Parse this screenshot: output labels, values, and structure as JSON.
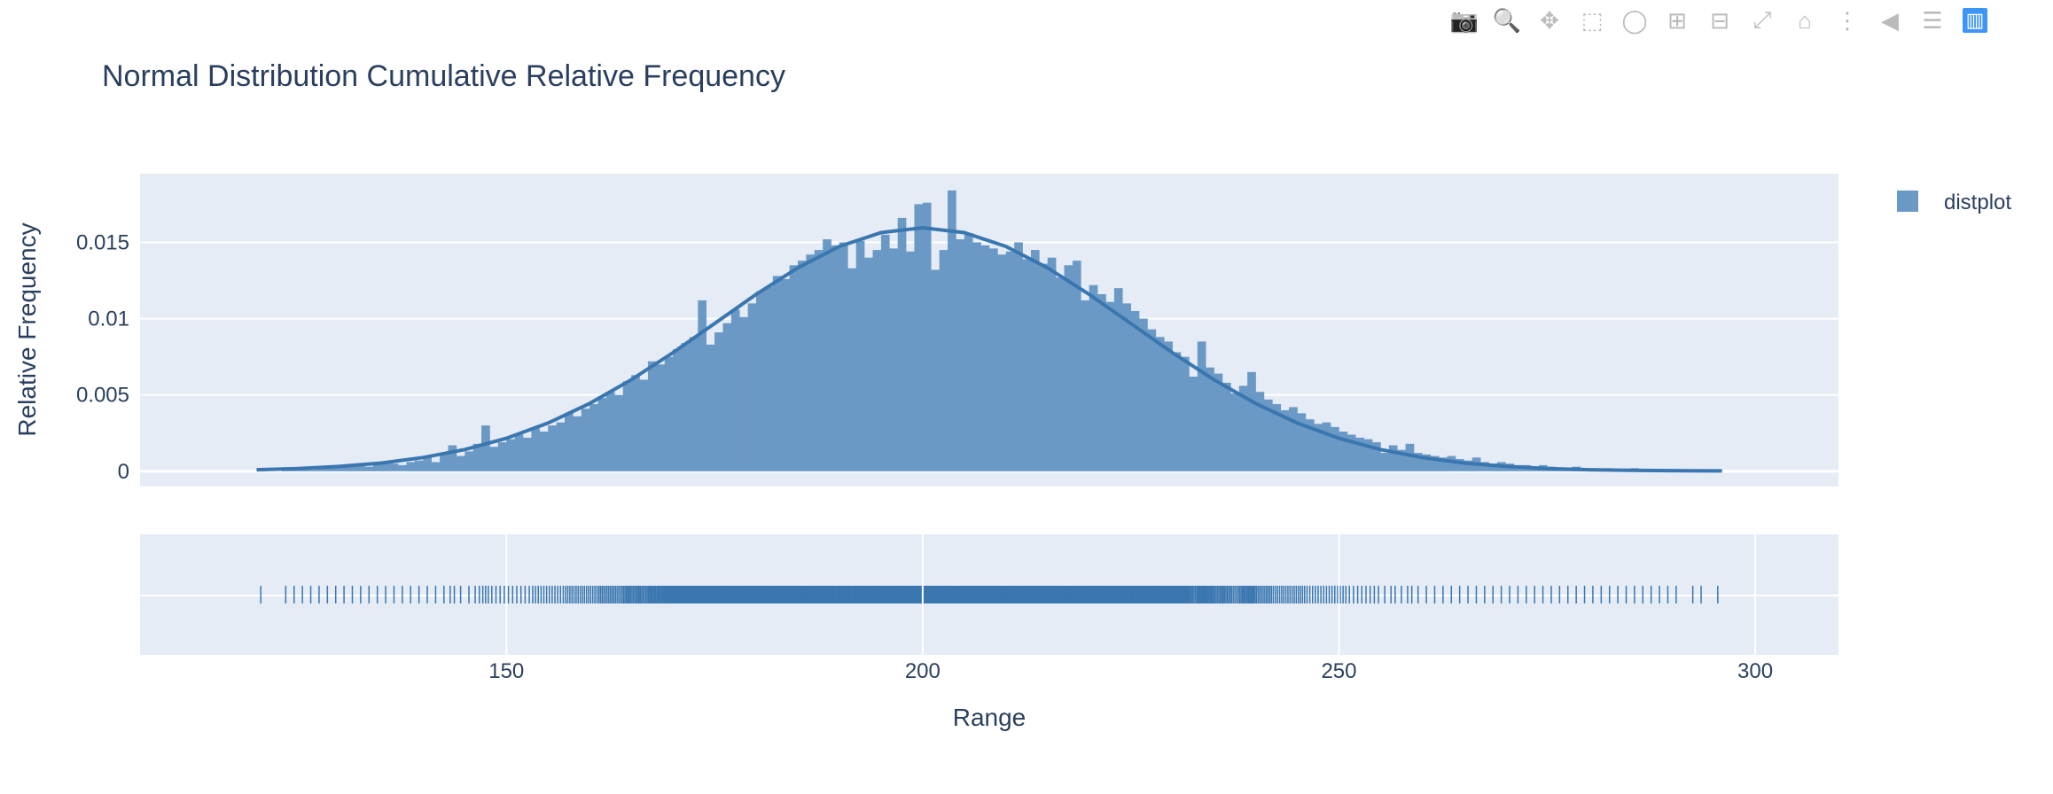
{
  "toolbar": {
    "buttons": [
      {
        "name": "camera-icon",
        "title": "Download plot as a png"
      },
      {
        "name": "zoom-icon",
        "title": "Zoom",
        "active": true
      },
      {
        "name": "pan-icon",
        "title": "Pan"
      },
      {
        "name": "box-select-icon",
        "title": "Box Select"
      },
      {
        "name": "lasso-select-icon",
        "title": "Lasso Select"
      },
      {
        "name": "zoom-in-icon",
        "title": "Zoom in"
      },
      {
        "name": "zoom-out-icon",
        "title": "Zoom out"
      },
      {
        "name": "autoscale-icon",
        "title": "Autoscale"
      },
      {
        "name": "home-icon",
        "title": "Reset axes"
      },
      {
        "name": "spike-lines-icon",
        "title": "Toggle Spike Lines"
      },
      {
        "name": "hover-closest-icon",
        "title": "Show closest data on hover"
      },
      {
        "name": "hover-compare-icon",
        "title": "Compare data on hover"
      },
      {
        "name": "plotly-logo-icon",
        "title": "Produced with Plotly"
      }
    ]
  },
  "chart_data": {
    "type": "bar",
    "title": "Normal Distribution Cumulative Relative Frequency",
    "xlabel": "Range",
    "ylabel": "Relative Frequency",
    "xlim": [
      106,
      310
    ],
    "ylim": [
      -0.001,
      0.0195
    ],
    "x_ticks": [
      150,
      200,
      250,
      300
    ],
    "y_ticks": [
      0,
      0.005,
      0.01,
      0.015
    ],
    "y_tick_labels": [
      "0",
      "0.005",
      "0.01",
      "0.015"
    ],
    "grid": true,
    "legend": {
      "position": "top-right",
      "entries": [
        "distplot"
      ]
    },
    "colors": {
      "bars": "#6b99c5",
      "curve": "#3a76af",
      "rug": "#3a76af",
      "plot_bg": "#e5ecf6",
      "text": "#2a3f5f"
    },
    "histogram": {
      "bin_start": 120,
      "bin_width": 1,
      "values": [
        0.0001,
        0,
        0,
        0.0001,
        0.0001,
        0.0002,
        0.0001,
        0.0002,
        0.0002,
        0.0003,
        0.0003,
        0.0003,
        0.0004,
        0.0003,
        0.0005,
        0.0006,
        0.0005,
        0.0004,
        0.0006,
        0.0007,
        0.0009,
        0.0006,
        0.0012,
        0.0017,
        0.001,
        0.0013,
        0.0018,
        0.003,
        0.0016,
        0.0019,
        0.0021,
        0.0024,
        0.0022,
        0.0028,
        0.0026,
        0.003,
        0.0032,
        0.0038,
        0.0036,
        0.0041,
        0.0044,
        0.0048,
        0.0052,
        0.005,
        0.0059,
        0.0063,
        0.006,
        0.0072,
        0.007,
        0.0075,
        0.008,
        0.0084,
        0.0088,
        0.0112,
        0.0083,
        0.0091,
        0.0097,
        0.0106,
        0.0101,
        0.011,
        0.0118,
        0.0121,
        0.0128,
        0.0126,
        0.0135,
        0.0138,
        0.0142,
        0.0145,
        0.0152,
        0.0148,
        0.015,
        0.0133,
        0.0151,
        0.014,
        0.0145,
        0.0155,
        0.0146,
        0.0166,
        0.0144,
        0.0175,
        0.0176,
        0.0132,
        0.0145,
        0.0184,
        0.0152,
        0.0156,
        0.015,
        0.0148,
        0.0146,
        0.0142,
        0.0144,
        0.015,
        0.0139,
        0.0145,
        0.0136,
        0.014,
        0.0127,
        0.0135,
        0.0138,
        0.0112,
        0.0122,
        0.0116,
        0.0111,
        0.012,
        0.011,
        0.0105,
        0.01,
        0.0093,
        0.0088,
        0.0085,
        0.0078,
        0.0075,
        0.0062,
        0.0085,
        0.0068,
        0.0064,
        0.0058,
        0.0051,
        0.0056,
        0.0065,
        0.0052,
        0.0047,
        0.0044,
        0.004,
        0.0042,
        0.0038,
        0.0034,
        0.0031,
        0.0032,
        0.0029,
        0.0026,
        0.0024,
        0.0022,
        0.0021,
        0.0019,
        0.0012,
        0.0017,
        0.0014,
        0.0018,
        0.0012,
        0.0011,
        0.001,
        0.0009,
        0.001,
        0.0008,
        0.0007,
        0.0009,
        0.0006,
        0.0005,
        0.0006,
        0.0005,
        0.0004,
        0.0004,
        0.0003,
        0.0004,
        0.0003,
        0.0002,
        0.0002,
        0.0003,
        0.0002,
        0.0002,
        0.0001,
        0.0002,
        0.0001,
        0.0001,
        0.0002,
        0.0001,
        0.0001,
        0.0001,
        0.0001,
        0.0001,
        0,
        0.0001,
        0.0001,
        0,
        0.0001
      ]
    },
    "curve": {
      "x": [
        120,
        125,
        130,
        135,
        140,
        145,
        150,
        155,
        160,
        165,
        170,
        175,
        180,
        185,
        190,
        195,
        200,
        205,
        210,
        215,
        220,
        225,
        230,
        235,
        240,
        245,
        250,
        255,
        260,
        265,
        270,
        275,
        280,
        285,
        290,
        296
      ],
      "y": [
        0.0001,
        0.00018,
        0.00032,
        0.00054,
        0.0009,
        0.00142,
        0.00216,
        0.00316,
        0.00444,
        0.00599,
        0.00777,
        0.00968,
        0.01159,
        0.01333,
        0.01473,
        0.01564,
        0.01596,
        0.01564,
        0.01473,
        0.01333,
        0.01159,
        0.00968,
        0.00777,
        0.00599,
        0.00444,
        0.00316,
        0.00216,
        0.00142,
        0.0009,
        0.00054,
        0.00032,
        0.00018,
        0.0001,
        6e-05,
        4e-05,
        2e-05
      ]
    }
  }
}
